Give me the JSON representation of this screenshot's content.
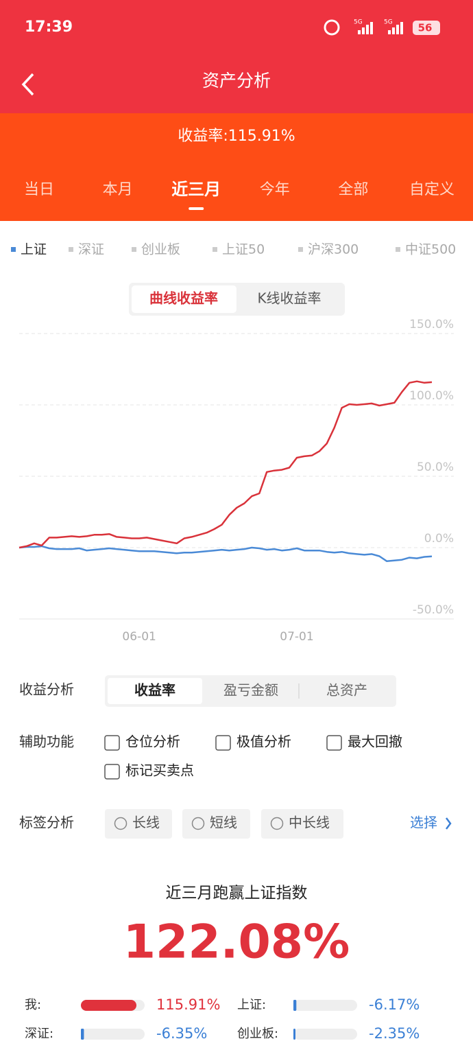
{
  "status_bar": {
    "time": "17:39",
    "network": [
      "5G",
      "5G"
    ],
    "battery": "56"
  },
  "header": {
    "title": "资产分析"
  },
  "summary": {
    "text": "收益率:115.91%"
  },
  "period_tabs": {
    "items": [
      "当日",
      "本月",
      "近三月",
      "今年",
      "全部",
      "自定义"
    ],
    "active": 2
  },
  "index_tabs": [
    "深证",
    "创业板",
    "上证50",
    "沪深300",
    "中证500"
  ],
  "chart_mode": {
    "items": [
      "曲线收益率",
      "K线收益率"
    ],
    "active": 0
  },
  "chart_data": {
    "type": "line",
    "categories": [
      null,
      null,
      null,
      null,
      null,
      null,
      null,
      null,
      null,
      null,
      null,
      null,
      null,
      null,
      null,
      null,
      "06-01",
      null,
      null,
      null,
      null,
      null,
      null,
      null,
      null,
      null,
      null,
      null,
      null,
      null,
      null,
      null,
      null,
      null,
      null,
      null,
      null,
      "07-01",
      null,
      null,
      null,
      null,
      null,
      null,
      null,
      null,
      null,
      null,
      null,
      null,
      null,
      null,
      null,
      null,
      null,
      null
    ],
    "series": [
      {
        "color": "#d9323a",
        "values": [
          0,
          1,
          3,
          1.5,
          7,
          7,
          7.5,
          8,
          7.5,
          8,
          9,
          9,
          9.5,
          7.5,
          7,
          6.5,
          6.5,
          7,
          6,
          5,
          4,
          3,
          6.5,
          7.5,
          9,
          10.5,
          13,
          16,
          23,
          28,
          31,
          36,
          38,
          53,
          54,
          54.5,
          56,
          63,
          64,
          64.5,
          67.5,
          73,
          84,
          98,
          100.5,
          100,
          100.5,
          101,
          99.5,
          100.5,
          101.5,
          109,
          115.5,
          116.5,
          115.5,
          115.91
        ]
      },
      {
        "name": "上证",
        "color": "#4a8ad6",
        "values": [
          0,
          0.5,
          0.5,
          1,
          -0.5,
          -1,
          -1,
          -1,
          -0.5,
          -2,
          -1.5,
          -1,
          -0.5,
          -1,
          -1.5,
          -2,
          -2.5,
          -2.5,
          -2.5,
          -3,
          -3.5,
          -4,
          -3.5,
          -3.5,
          -3,
          -2.5,
          -2,
          -1.5,
          -2,
          -1.5,
          -1,
          0,
          -0.5,
          -1.5,
          -1,
          -2,
          -1.5,
          -0.5,
          -2,
          -2,
          -2,
          -3,
          -3.5,
          -3,
          -4,
          -4.5,
          -5,
          -4.5,
          -6,
          -9.5,
          -9,
          -8.5,
          -7,
          -7.5,
          -6.5,
          -6.17
        ]
      }
    ],
    "ylim": [
      -50,
      150
    ],
    "yticks": [
      {
        "value": -50,
        "label": "-50.0%"
      },
      {
        "value": 0,
        "label": "0.0%"
      },
      {
        "value": 50,
        "label": "50.0%"
      },
      {
        "value": 100,
        "label": "100.0%"
      },
      {
        "value": 150,
        "label": "150.0%"
      }
    ],
    "grid": true
  },
  "analysis": {
    "label": "收益分析",
    "tabs": [
      "收益率",
      "盈亏金额",
      "总资产"
    ],
    "active": 0
  },
  "aux": {
    "label": "辅助功能",
    "options": [
      "仓位分析",
      "极值分析",
      "最大回撤",
      "标记买卖点"
    ]
  },
  "tags": {
    "label": "标签分析",
    "options": [
      "长线",
      "短线",
      "中长线"
    ],
    "link": "选择"
  },
  "result": {
    "title": "近三月跑赢上证指数",
    "value": "122.08%"
  },
  "compare": [
    {
      "name": "我:",
      "value": 115.91,
      "value_label": "115.91%",
      "color": "#e0323c"
    },
    {
      "name": "上证:",
      "value": -6.17,
      "value_label": "-6.17%",
      "color": "#3a7fd5"
    },
    {
      "name": "深证:",
      "value": -6.35,
      "value_label": "-6.35%",
      "color": "#3a7fd5"
    },
    {
      "name": "创业板:",
      "value": -2.35,
      "value_label": "-2.35%",
      "color": "#3a7fd5"
    }
  ]
}
